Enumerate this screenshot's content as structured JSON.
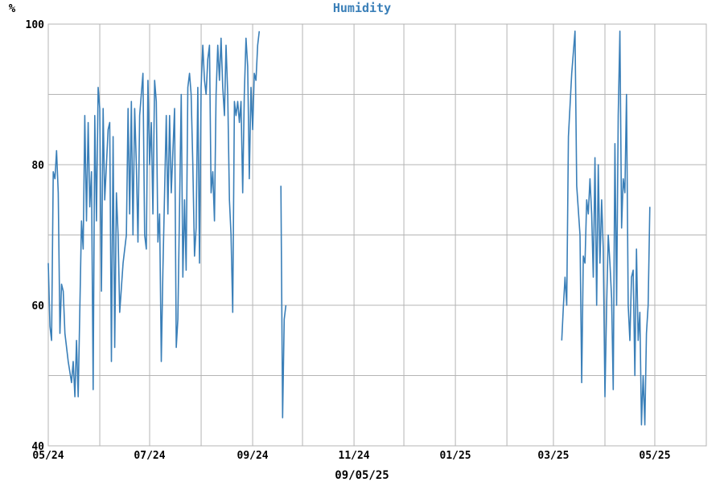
{
  "chart_data": {
    "type": "line",
    "title": "Humidity",
    "ylabel": "%",
    "xlabel": "09/05/25",
    "ylim": [
      40,
      100
    ],
    "y_ticks": [
      40,
      60,
      80,
      100
    ],
    "xlim": [
      "2024-05-01",
      "2025-06-01"
    ],
    "x_ticks": [
      {
        "date": "2024-05-01",
        "label": "05/24"
      },
      {
        "date": "2024-07-01",
        "label": "07/24"
      },
      {
        "date": "2024-09-01",
        "label": "09/24"
      },
      {
        "date": "2024-11-01",
        "label": "11/24"
      },
      {
        "date": "2025-01-01",
        "label": "01/25"
      },
      {
        "date": "2025-03-01",
        "label": "03/25"
      },
      {
        "date": "2025-05-01",
        "label": "05/25"
      }
    ],
    "x_gridlines": [
      "2024-06-01",
      "2024-07-01",
      "2024-08-01",
      "2024-09-01",
      "2024-10-01",
      "2024-11-01",
      "2024-12-01",
      "2025-01-01",
      "2025-02-01",
      "2025-03-01",
      "2025-04-01",
      "2025-05-01"
    ],
    "grid": true,
    "line_color": "#3a7fb8",
    "title_color": "#3a7fb8",
    "grid_color": "#b4b4b4",
    "series": [
      {
        "segments": [
          [
            [
              "2024-05-01",
              66
            ],
            [
              "2024-05-02",
              57
            ],
            [
              "2024-05-03",
              55
            ],
            [
              "2024-05-04",
              79
            ],
            [
              "2024-05-05",
              78
            ],
            [
              "2024-05-06",
              82
            ],
            [
              "2024-05-07",
              76
            ],
            [
              "2024-05-08",
              56
            ],
            [
              "2024-05-09",
              63
            ],
            [
              "2024-05-10",
              62
            ],
            [
              "2024-05-11",
              56
            ],
            [
              "2024-05-13",
              52
            ],
            [
              "2024-05-15",
              49
            ],
            [
              "2024-05-16",
              52
            ],
            [
              "2024-05-17",
              47
            ],
            [
              "2024-05-18",
              55
            ],
            [
              "2024-05-19",
              47
            ],
            [
              "2024-05-21",
              72
            ],
            [
              "2024-05-22",
              68
            ],
            [
              "2024-05-23",
              87
            ],
            [
              "2024-05-24",
              72
            ],
            [
              "2024-05-25",
              86
            ],
            [
              "2024-05-26",
              74
            ],
            [
              "2024-05-27",
              79
            ],
            [
              "2024-05-28",
              48
            ],
            [
              "2024-05-29",
              87
            ],
            [
              "2024-05-30",
              72
            ],
            [
              "2024-05-31",
              91
            ],
            [
              "2024-06-01",
              88
            ],
            [
              "2024-06-02",
              62
            ],
            [
              "2024-06-03",
              88
            ],
            [
              "2024-06-04",
              75
            ],
            [
              "2024-06-06",
              85
            ],
            [
              "2024-06-07",
              86
            ],
            [
              "2024-06-08",
              52
            ],
            [
              "2024-06-09",
              84
            ],
            [
              "2024-06-10",
              54
            ],
            [
              "2024-06-11",
              76
            ],
            [
              "2024-06-12",
              70
            ],
            [
              "2024-06-13",
              59
            ],
            [
              "2024-06-15",
              66
            ],
            [
              "2024-06-17",
              70
            ],
            [
              "2024-06-18",
              88
            ],
            [
              "2024-06-19",
              73
            ],
            [
              "2024-06-20",
              89
            ],
            [
              "2024-06-21",
              70
            ],
            [
              "2024-06-22",
              88
            ],
            [
              "2024-06-23",
              80
            ],
            [
              "2024-06-24",
              69
            ],
            [
              "2024-06-25",
              87
            ],
            [
              "2024-06-27",
              93
            ],
            [
              "2024-06-28",
              70
            ],
            [
              "2024-06-29",
              68
            ],
            [
              "2024-06-30",
              92
            ],
            [
              "2024-07-01",
              80
            ],
            [
              "2024-07-02",
              86
            ],
            [
              "2024-07-03",
              73
            ],
            [
              "2024-07-04",
              92
            ],
            [
              "2024-07-05",
              89
            ],
            [
              "2024-07-06",
              69
            ],
            [
              "2024-07-07",
              73
            ],
            [
              "2024-07-08",
              52
            ],
            [
              "2024-07-09",
              65
            ],
            [
              "2024-07-11",
              87
            ],
            [
              "2024-07-12",
              73
            ],
            [
              "2024-07-13",
              87
            ],
            [
              "2024-07-14",
              76
            ],
            [
              "2024-07-16",
              88
            ],
            [
              "2024-07-17",
              54
            ],
            [
              "2024-07-18",
              58
            ],
            [
              "2024-07-20",
              90
            ],
            [
              "2024-07-21",
              64
            ],
            [
              "2024-07-22",
              75
            ],
            [
              "2024-07-23",
              65
            ],
            [
              "2024-07-24",
              91
            ],
            [
              "2024-07-25",
              93
            ],
            [
              "2024-07-26",
              90
            ],
            [
              "2024-07-27",
              80
            ],
            [
              "2024-07-28",
              67
            ],
            [
              "2024-07-29",
              71
            ],
            [
              "2024-07-30",
              91
            ],
            [
              "2024-07-31",
              66
            ],
            [
              "2024-08-01",
              91
            ],
            [
              "2024-08-02",
              97
            ],
            [
              "2024-08-03",
              92
            ],
            [
              "2024-08-04",
              90
            ],
            [
              "2024-08-05",
              95
            ],
            [
              "2024-08-06",
              97
            ],
            [
              "2024-08-07",
              76
            ],
            [
              "2024-08-08",
              79
            ],
            [
              "2024-08-09",
              72
            ],
            [
              "2024-08-10",
              90
            ],
            [
              "2024-08-11",
              97
            ],
            [
              "2024-08-12",
              92
            ],
            [
              "2024-08-13",
              98
            ],
            [
              "2024-08-14",
              91
            ],
            [
              "2024-08-15",
              87
            ],
            [
              "2024-08-16",
              97
            ],
            [
              "2024-08-17",
              90
            ],
            [
              "2024-08-18",
              75
            ],
            [
              "2024-08-19",
              70
            ],
            [
              "2024-08-20",
              59
            ],
            [
              "2024-08-21",
              89
            ],
            [
              "2024-08-22",
              87
            ],
            [
              "2024-08-23",
              89
            ],
            [
              "2024-08-24",
              86
            ],
            [
              "2024-08-25",
              89
            ],
            [
              "2024-08-26",
              76
            ],
            [
              "2024-08-27",
              90
            ],
            [
              "2024-08-28",
              98
            ],
            [
              "2024-08-29",
              94
            ],
            [
              "2024-08-30",
              78
            ],
            [
              "2024-08-31",
              91
            ],
            [
              "2024-09-01",
              85
            ],
            [
              "2024-09-02",
              93
            ],
            [
              "2024-09-03",
              92
            ],
            [
              "2024-09-04",
              97
            ],
            [
              "2024-09-05",
              99
            ]
          ],
          [
            [
              "2024-09-18",
              77
            ],
            [
              "2024-09-19",
              44
            ],
            [
              "2024-09-20",
              58
            ],
            [
              "2024-09-21",
              60
            ]
          ],
          [
            [
              "2025-03-06",
              55
            ],
            [
              "2025-03-07",
              60
            ],
            [
              "2025-03-08",
              64
            ],
            [
              "2025-03-09",
              60
            ],
            [
              "2025-03-10",
              84
            ],
            [
              "2025-03-12",
              93
            ],
            [
              "2025-03-14",
              99
            ],
            [
              "2025-03-15",
              77
            ],
            [
              "2025-03-17",
              70
            ],
            [
              "2025-03-18",
              49
            ],
            [
              "2025-03-19",
              67
            ],
            [
              "2025-03-20",
              66
            ],
            [
              "2025-03-21",
              75
            ],
            [
              "2025-03-22",
              73
            ],
            [
              "2025-03-23",
              78
            ],
            [
              "2025-03-24",
              73
            ],
            [
              "2025-03-25",
              64
            ],
            [
              "2025-03-26",
              81
            ],
            [
              "2025-03-27",
              60
            ],
            [
              "2025-03-28",
              80
            ],
            [
              "2025-03-29",
              66
            ],
            [
              "2025-03-30",
              75
            ],
            [
              "2025-03-31",
              68
            ],
            [
              "2025-04-01",
              47
            ],
            [
              "2025-04-02",
              60
            ],
            [
              "2025-04-03",
              70
            ],
            [
              "2025-04-04",
              66
            ],
            [
              "2025-04-05",
              61
            ],
            [
              "2025-04-06",
              48
            ],
            [
              "2025-04-07",
              83
            ],
            [
              "2025-04-08",
              60
            ],
            [
              "2025-04-09",
              87
            ],
            [
              "2025-04-10",
              99
            ],
            [
              "2025-04-11",
              71
            ],
            [
              "2025-04-12",
              78
            ],
            [
              "2025-04-13",
              76
            ],
            [
              "2025-04-14",
              90
            ],
            [
              "2025-04-15",
              60
            ],
            [
              "2025-04-16",
              55
            ],
            [
              "2025-04-17",
              64
            ],
            [
              "2025-04-18",
              65
            ],
            [
              "2025-04-19",
              50
            ],
            [
              "2025-04-20",
              68
            ],
            [
              "2025-04-21",
              55
            ],
            [
              "2025-04-22",
              59
            ],
            [
              "2025-04-23",
              43
            ],
            [
              "2025-04-24",
              50
            ],
            [
              "2025-04-25",
              43
            ],
            [
              "2025-04-26",
              56
            ],
            [
              "2025-04-27",
              60
            ],
            [
              "2025-04-28",
              74
            ]
          ]
        ]
      }
    ]
  }
}
